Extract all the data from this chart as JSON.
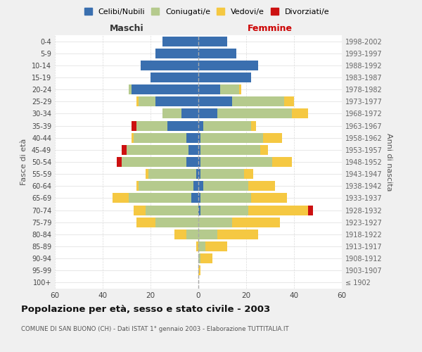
{
  "age_groups": [
    "100+",
    "95-99",
    "90-94",
    "85-89",
    "80-84",
    "75-79",
    "70-74",
    "65-69",
    "60-64",
    "55-59",
    "50-54",
    "45-49",
    "40-44",
    "35-39",
    "30-34",
    "25-29",
    "20-24",
    "15-19",
    "10-14",
    "5-9",
    "0-4"
  ],
  "birth_years": [
    "≤ 1902",
    "1903-1907",
    "1908-1912",
    "1913-1917",
    "1918-1922",
    "1923-1927",
    "1928-1932",
    "1933-1937",
    "1938-1942",
    "1943-1947",
    "1948-1952",
    "1953-1957",
    "1958-1962",
    "1963-1967",
    "1968-1972",
    "1973-1977",
    "1978-1982",
    "1983-1987",
    "1988-1992",
    "1993-1997",
    "1998-2002"
  ],
  "maschi": {
    "celibi": [
      0,
      0,
      0,
      0,
      0,
      0,
      0,
      3,
      2,
      1,
      5,
      4,
      5,
      13,
      7,
      18,
      28,
      20,
      24,
      18,
      15
    ],
    "coniugati": [
      0,
      0,
      0,
      0,
      5,
      18,
      22,
      26,
      23,
      20,
      27,
      26,
      22,
      13,
      8,
      7,
      1,
      0,
      0,
      0,
      0
    ],
    "vedovi": [
      0,
      0,
      0,
      1,
      5,
      8,
      5,
      7,
      1,
      1,
      0,
      0,
      1,
      0,
      0,
      1,
      0,
      0,
      0,
      0,
      0
    ],
    "divorziati": [
      0,
      0,
      0,
      0,
      0,
      0,
      0,
      0,
      0,
      0,
      2,
      2,
      0,
      2,
      0,
      0,
      0,
      0,
      0,
      0,
      0
    ]
  },
  "femmine": {
    "nubili": [
      0,
      0,
      0,
      0,
      0,
      0,
      1,
      1,
      2,
      1,
      1,
      1,
      1,
      2,
      8,
      14,
      9,
      22,
      25,
      16,
      12
    ],
    "coniugate": [
      0,
      0,
      1,
      3,
      8,
      14,
      20,
      21,
      19,
      18,
      30,
      25,
      26,
      20,
      31,
      22,
      8,
      0,
      0,
      0,
      0
    ],
    "vedove": [
      0,
      1,
      5,
      9,
      17,
      20,
      25,
      15,
      11,
      4,
      8,
      3,
      8,
      2,
      7,
      4,
      1,
      0,
      0,
      0,
      0
    ],
    "divorziate": [
      0,
      0,
      0,
      0,
      0,
      0,
      2,
      0,
      0,
      0,
      0,
      0,
      0,
      0,
      0,
      0,
      0,
      0,
      0,
      0,
      0
    ]
  },
  "colors": {
    "celibi": "#3a6faf",
    "coniugati": "#b5ca8d",
    "vedovi": "#f5c842",
    "divorziati": "#cc1111"
  },
  "title": "Popolazione per età, sesso e stato civile - 2003",
  "subtitle": "COMUNE DI SAN BUONO (CH) - Dati ISTAT 1° gennaio 2003 - Elaborazione TUTTITALIA.IT",
  "xlabel_left": "Maschi",
  "xlabel_right": "Femmine",
  "ylabel_left": "Fasce di età",
  "ylabel_right": "Anni di nascita",
  "xlim": 60,
  "background_color": "#f0f0f0",
  "plot_bg": "#ffffff",
  "grid_color": "#cccccc"
}
